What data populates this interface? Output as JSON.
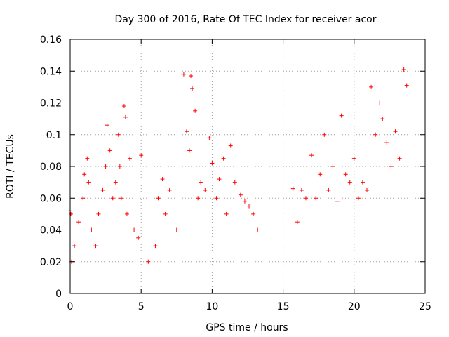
{
  "chart_data": {
    "type": "scatter",
    "title": "Day 300 of 2016, Rate Of TEC Index for receiver acor",
    "xlabel": "GPS time / hours",
    "ylabel": "ROTI / TECUs",
    "xlim": [
      0,
      25
    ],
    "ylim": [
      0,
      0.16
    ],
    "xticks": [
      0,
      5,
      10,
      15,
      20,
      25
    ],
    "xtick_labels": [
      "0",
      "5",
      "10",
      "15",
      "20",
      "25"
    ],
    "yticks": [
      0,
      0.02,
      0.04,
      0.06,
      0.08,
      0.1,
      0.12,
      0.14,
      0.16
    ],
    "ytick_labels": [
      "0",
      "0.02",
      "0.04",
      "0.06",
      "0.08",
      "0.1",
      "0.12",
      "0.14",
      "0.16"
    ],
    "grid": true,
    "marker": "plus",
    "color": "#ff0000",
    "data_gap_hours": [
      13.4,
      15.5
    ],
    "series": [
      {
        "name": "ROTI",
        "x": [
          0.0,
          0.05,
          0.1,
          0.3,
          0.6,
          0.9,
          1.0,
          1.2,
          1.3,
          1.5,
          1.8,
          2.0,
          2.3,
          2.5,
          2.6,
          2.8,
          3.0,
          3.2,
          3.4,
          3.5,
          3.6,
          3.8,
          3.9,
          4.0,
          4.2,
          4.5,
          4.8,
          5.0,
          5.5,
          6.0,
          6.2,
          6.5,
          6.7,
          7.0,
          7.5,
          8.0,
          8.2,
          8.4,
          8.5,
          8.6,
          8.8,
          9.0,
          9.2,
          9.5,
          9.8,
          10.0,
          10.3,
          10.5,
          10.8,
          11.0,
          11.3,
          11.6,
          12.0,
          12.3,
          12.6,
          12.9,
          13.2,
          15.7,
          16.0,
          16.3,
          16.6,
          17.0,
          17.3,
          17.6,
          17.9,
          18.2,
          18.5,
          18.8,
          19.1,
          19.4,
          19.7,
          20.0,
          20.3,
          20.6,
          20.9,
          21.2,
          21.5,
          21.8,
          22.0,
          22.3,
          22.6,
          22.9,
          23.2,
          23.5,
          23.7
        ],
        "y": [
          0.052,
          0.05,
          0.02,
          0.03,
          0.045,
          0.06,
          0.075,
          0.085,
          0.07,
          0.04,
          0.03,
          0.05,
          0.065,
          0.08,
          0.106,
          0.09,
          0.06,
          0.07,
          0.1,
          0.08,
          0.06,
          0.118,
          0.111,
          0.05,
          0.085,
          0.04,
          0.035,
          0.087,
          0.02,
          0.03,
          0.06,
          0.072,
          0.05,
          0.065,
          0.04,
          0.138,
          0.102,
          0.09,
          0.137,
          0.129,
          0.115,
          0.06,
          0.07,
          0.065,
          0.098,
          0.082,
          0.06,
          0.072,
          0.085,
          0.05,
          0.093,
          0.07,
          0.062,
          0.058,
          0.055,
          0.05,
          0.04,
          0.066,
          0.045,
          0.065,
          0.06,
          0.087,
          0.06,
          0.075,
          0.1,
          0.065,
          0.08,
          0.058,
          0.112,
          0.075,
          0.07,
          0.085,
          0.06,
          0.07,
          0.065,
          0.13,
          0.1,
          0.12,
          0.11,
          0.095,
          0.08,
          0.102,
          0.085,
          0.141,
          0.131
        ]
      }
    ]
  }
}
